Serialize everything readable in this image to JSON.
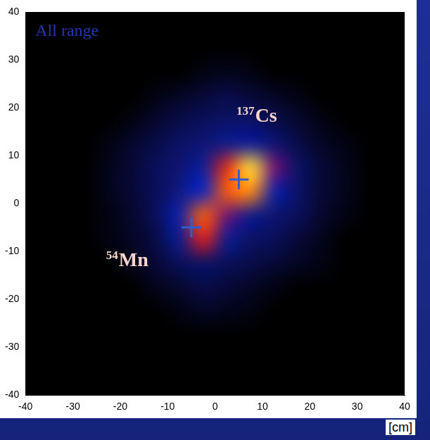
{
  "chart_data": {
    "type": "heatmap",
    "title": "All range",
    "annotations": [
      "137Cs",
      "54Mn"
    ],
    "x_label": "[cm]",
    "xlim": [
      -40,
      40
    ],
    "ylim": [
      -40,
      40
    ],
    "xticks": [
      -40,
      -30,
      -20,
      -10,
      0,
      10,
      20,
      30,
      40
    ],
    "yticks": [
      -40,
      -30,
      -20,
      -10,
      0,
      10,
      20,
      30,
      40
    ],
    "grid": false,
    "zlim": [
      0,
      100
    ],
    "cells": [
      [
        0,
        0,
        0,
        0,
        0,
        0,
        0,
        0,
        0,
        0,
        0,
        0,
        0,
        0,
        0,
        0
      ],
      [
        0,
        0,
        0,
        0,
        0,
        0,
        0,
        0,
        0,
        0,
        0,
        0,
        0,
        0,
        0,
        0
      ],
      [
        0,
        0,
        0,
        0,
        0,
        0,
        0,
        2,
        3,
        2,
        0,
        0,
        0,
        0,
        0,
        0
      ],
      [
        0,
        0,
        0,
        0,
        0,
        2,
        4,
        6,
        8,
        6,
        4,
        2,
        0,
        0,
        0,
        0
      ],
      [
        0,
        0,
        0,
        0,
        2,
        5,
        8,
        10,
        12,
        12,
        8,
        5,
        2,
        0,
        0,
        0
      ],
      [
        0,
        0,
        0,
        2,
        5,
        8,
        12,
        15,
        20,
        22,
        15,
        8,
        4,
        2,
        0,
        0
      ],
      [
        0,
        0,
        0,
        3,
        6,
        10,
        15,
        22,
        60,
        95,
        40,
        12,
        6,
        3,
        0,
        0
      ],
      [
        0,
        0,
        0,
        3,
        6,
        10,
        18,
        30,
        70,
        80,
        25,
        12,
        6,
        3,
        0,
        0
      ],
      [
        0,
        0,
        0,
        2,
        5,
        10,
        25,
        70,
        40,
        20,
        14,
        10,
        5,
        2,
        0,
        0
      ],
      [
        0,
        0,
        0,
        2,
        4,
        8,
        20,
        55,
        20,
        12,
        10,
        6,
        3,
        0,
        0,
        0
      ],
      [
        0,
        0,
        0,
        0,
        3,
        6,
        10,
        12,
        10,
        8,
        6,
        4,
        2,
        0,
        0,
        0
      ],
      [
        0,
        0,
        0,
        0,
        0,
        3,
        5,
        8,
        6,
        4,
        2,
        0,
        0,
        0,
        0,
        0
      ],
      [
        0,
        0,
        0,
        0,
        0,
        0,
        2,
        4,
        3,
        2,
        0,
        0,
        0,
        0,
        0,
        0
      ],
      [
        0,
        0,
        0,
        0,
        0,
        0,
        0,
        0,
        0,
        0,
        0,
        0,
        0,
        0,
        0,
        0
      ],
      [
        0,
        0,
        0,
        0,
        0,
        0,
        0,
        0,
        0,
        0,
        0,
        0,
        0,
        0,
        0,
        0
      ],
      [
        0,
        0,
        0,
        0,
        0,
        0,
        0,
        0,
        0,
        0,
        0,
        0,
        0,
        0,
        0,
        0
      ]
    ],
    "points": {
      "x": [
        5,
        -5
      ],
      "y": [
        5,
        -5
      ],
      "marker": "cross",
      "color": "#2f5fcf"
    }
  }
}
